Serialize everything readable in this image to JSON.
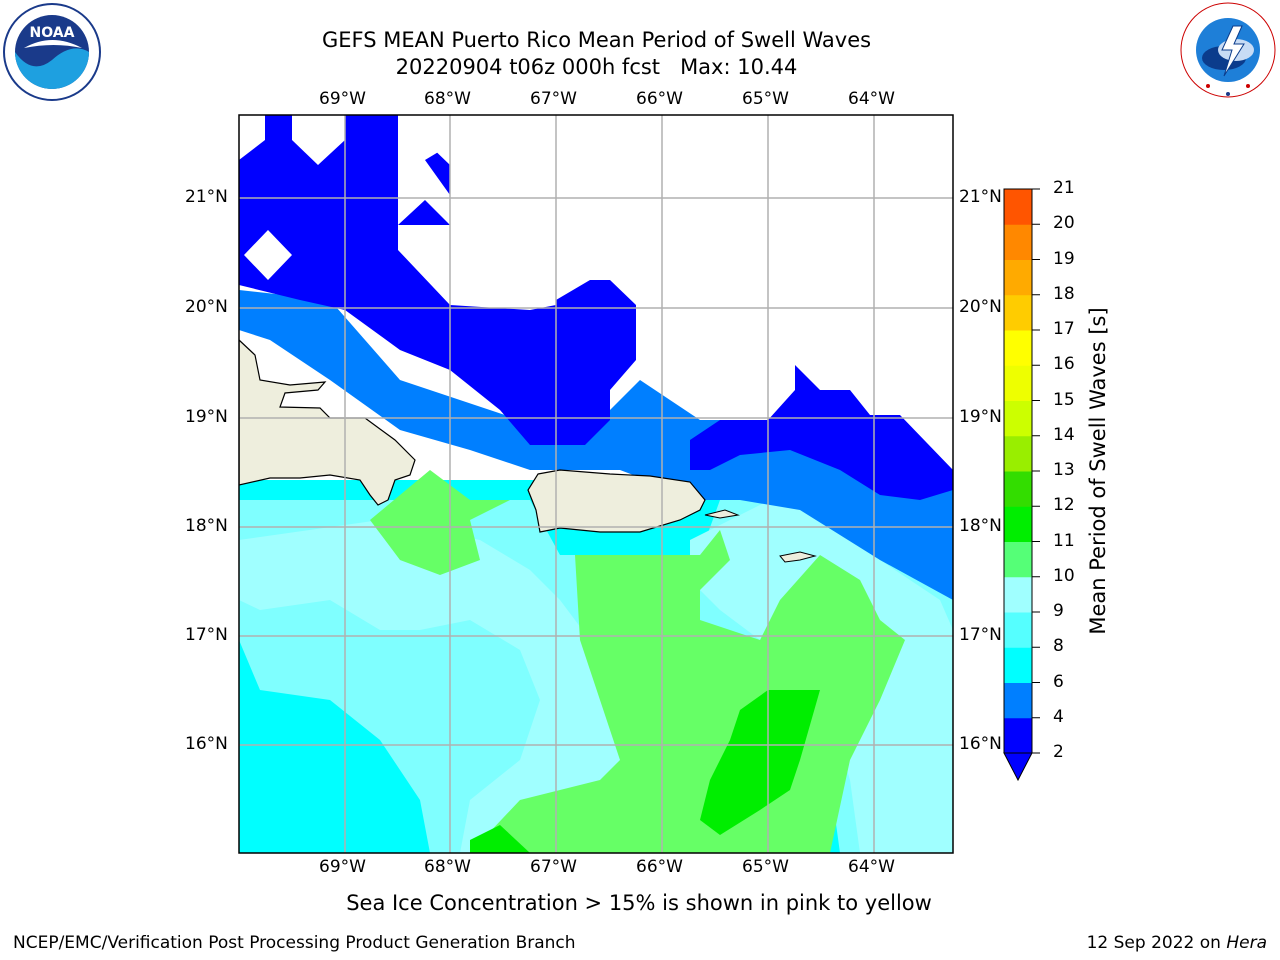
{
  "title": {
    "line1": "GEFS MEAN Puerto Rico Mean Period of Swell Waves",
    "line2": "20220904 t06z 000h fcst   Max: 10.44"
  },
  "logos": {
    "noaa": {
      "text": "NOAA",
      "ring_top": "NATIONAL OCEANIC AND ATMOSPHERIC ADMINISTRATION",
      "ring_bottom": "U.S. DEPARTMENT OF COMMERCE"
    },
    "nws": {
      "ring": "NATIONAL WEATHER SERVICE"
    }
  },
  "map": {
    "lon_labels": [
      "69°W",
      "68°W",
      "67°W",
      "66°W",
      "65°W",
      "64°W"
    ],
    "lat_labels": [
      "21°N",
      "20°N",
      "19°N",
      "18°N",
      "17°N",
      "16°N"
    ],
    "colors": {
      "land": "#eeeedd",
      "grid": "#b0b0b0",
      "c2_4": "#0000ff",
      "c4_6": "#007fff",
      "c6_8": "#00ffff",
      "c8_9": "#7fffff",
      "c9_10": "#a0ffff",
      "c10_11": "#66ff66",
      "c11_12": "#00ee00"
    }
  },
  "colorbar": {
    "label": "Mean Period of Swell Waves [s]",
    "ticks": [
      "2",
      "4",
      "6",
      "8",
      "9",
      "10",
      "11",
      "12",
      "13",
      "14",
      "15",
      "16",
      "17",
      "18",
      "19",
      "20",
      "21"
    ],
    "colors": [
      "#0000ff",
      "#007fff",
      "#00ffff",
      "#55ffff",
      "#a0ffff",
      "#55ff77",
      "#00ee00",
      "#33dd00",
      "#99ee00",
      "#ccff00",
      "#eeff00",
      "#ffff00",
      "#ffcc00",
      "#ffaa00",
      "#ff8800",
      "#ff5500",
      "#ff2200",
      "#ff0000"
    ]
  },
  "caption": "Sea Ice Concentration > 15% is shown in pink to yellow",
  "footer": {
    "left": "NCEP/EMC/Verification Post Processing Product Generation Branch",
    "right_prefix": "12 Sep 2022 on ",
    "right_host": "Hera"
  }
}
